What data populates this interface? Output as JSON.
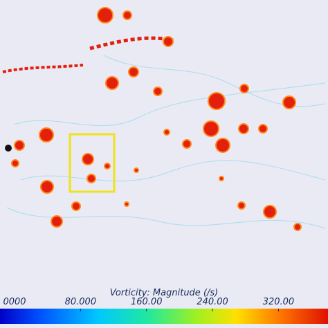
{
  "colorbar": {
    "title": "Vorticity: Magnitude (/s)",
    "range": [
      0,
      380
    ],
    "ticks": [
      {
        "value": 0,
        "label": "0000"
      },
      {
        "value": 80,
        "label": "80.000"
      },
      {
        "value": 160,
        "label": "160.00"
      },
      {
        "value": 240,
        "label": "240.00"
      },
      {
        "value": 320,
        "label": "320.00"
      }
    ]
  }
}
